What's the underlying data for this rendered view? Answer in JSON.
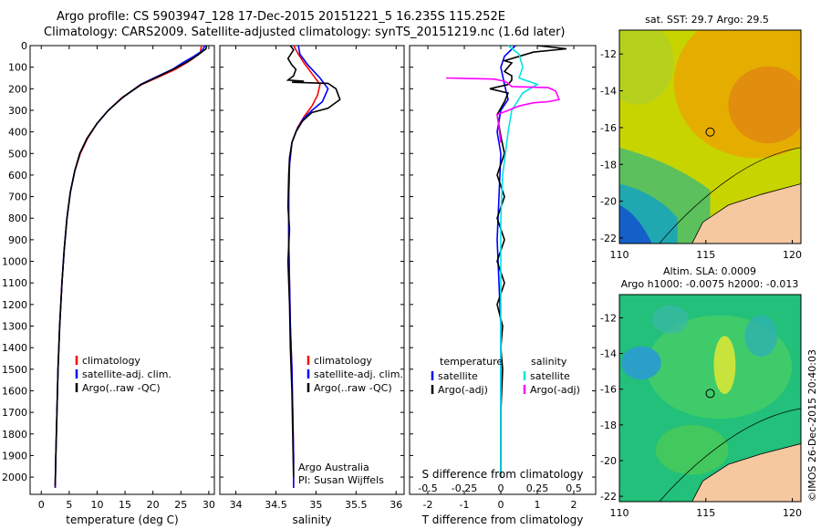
{
  "header": {
    "line1": "Argo profile: CS 5903947_128 17-Dec-2015 20151221_5 16.235S 115.252E",
    "line2": "Climatology: CARS2009. Satellite-adjusted climatology: synTS_20151219.nc (1.6d later)"
  },
  "colors": {
    "climatology": "#ff0000",
    "satellite": "#0000ff",
    "argo": "#000000",
    "sal_satellite": "#00e5e5",
    "sal_argo": "#ff00ff"
  },
  "chart_data": [
    {
      "type": "line",
      "id": "temperature",
      "xlabel": "temperature (deg C)",
      "ylabel": "",
      "xlim": [
        -2,
        31
      ],
      "ylim": [
        2080,
        0
      ],
      "xticks": [
        0,
        5,
        10,
        15,
        20,
        25,
        30
      ],
      "yticks": [
        0,
        100,
        200,
        300,
        400,
        500,
        600,
        700,
        800,
        900,
        1000,
        1100,
        1200,
        1300,
        1400,
        1500,
        1600,
        1700,
        1800,
        1900,
        2000
      ],
      "legend": [
        "climatology",
        "satellite-adj. clim.",
        "Argo(..raw -QC)"
      ],
      "series": [
        {
          "name": "climatology",
          "color": "climatology",
          "points": [
            [
              28.7,
              0
            ],
            [
              28.5,
              30
            ],
            [
              27.2,
              60
            ],
            [
              26,
              80
            ],
            [
              24,
              110
            ],
            [
              21.5,
              140
            ],
            [
              18,
              180
            ],
            [
              14.5,
              240
            ],
            [
              12,
              300
            ],
            [
              10,
              360
            ],
            [
              8.3,
              430
            ],
            [
              7,
              500
            ],
            [
              6,
              580
            ],
            [
              5.2,
              680
            ],
            [
              4.6,
              800
            ],
            [
              4.1,
              950
            ],
            [
              3.7,
              1100
            ],
            [
              3.3,
              1300
            ],
            [
              3,
              1500
            ],
            [
              2.8,
              1700
            ],
            [
              2.6,
              1900
            ],
            [
              2.5,
              2050
            ]
          ]
        },
        {
          "name": "satellite",
          "color": "satellite",
          "points": [
            [
              29.3,
              0
            ],
            [
              28.8,
              25
            ],
            [
              27,
              55
            ],
            [
              25.3,
              80
            ],
            [
              23.5,
              110
            ],
            [
              21,
              140
            ],
            [
              17.8,
              180
            ],
            [
              14.6,
              240
            ],
            [
              12,
              300
            ],
            [
              10,
              360
            ],
            [
              8.2,
              430
            ],
            [
              6.9,
              500
            ],
            [
              6,
              580
            ],
            [
              5.2,
              680
            ],
            [
              4.6,
              800
            ],
            [
              4.1,
              950
            ],
            [
              3.7,
              1100
            ],
            [
              3.3,
              1300
            ],
            [
              3,
              1500
            ],
            [
              2.8,
              1700
            ],
            [
              2.6,
              1900
            ],
            [
              2.5,
              2050
            ]
          ]
        },
        {
          "name": "argo",
          "color": "argo",
          "points": [
            [
              29.6,
              0
            ],
            [
              29.5,
              15
            ],
            [
              28,
              45
            ],
            [
              26.2,
              75
            ],
            [
              24,
              105
            ],
            [
              21.2,
              140
            ],
            [
              17.9,
              180
            ],
            [
              14.6,
              240
            ],
            [
              12,
              300
            ],
            [
              10,
              360
            ],
            [
              8.2,
              430
            ],
            [
              6.9,
              500
            ],
            [
              6,
              580
            ],
            [
              5.2,
              680
            ],
            [
              4.6,
              800
            ],
            [
              4.1,
              950
            ],
            [
              3.7,
              1100
            ],
            [
              3.3,
              1300
            ],
            [
              3,
              1500
            ],
            [
              2.8,
              1700
            ],
            [
              2.6,
              1900
            ],
            [
              2.5,
              2040
            ]
          ]
        }
      ]
    },
    {
      "type": "line",
      "id": "salinity",
      "xlabel": "salinity",
      "ylabel": "",
      "xlim": [
        33.8,
        36.1
      ],
      "ylim": [
        2080,
        0
      ],
      "xticks": [
        34,
        34.5,
        35,
        35.5,
        36
      ],
      "legend": [
        "climatology",
        "satellite-adj. clim.",
        "Argo(..raw -QC)"
      ],
      "annotations": [
        "Argo Australia",
        "PI: Susan Wijffels"
      ],
      "series": [
        {
          "name": "climatology",
          "color": "climatology",
          "points": [
            [
              34.72,
              0
            ],
            [
              34.78,
              40
            ],
            [
              34.85,
              80
            ],
            [
              34.95,
              130
            ],
            [
              35.05,
              180
            ],
            [
              35.02,
              230
            ],
            [
              34.95,
              280
            ],
            [
              34.85,
              330
            ],
            [
              34.77,
              380
            ],
            [
              34.7,
              450
            ],
            [
              34.67,
              550
            ],
            [
              34.66,
              700
            ],
            [
              34.66,
              900
            ],
            [
              34.67,
              1100
            ],
            [
              34.68,
              1300
            ],
            [
              34.7,
              1500
            ],
            [
              34.71,
              1700
            ],
            [
              34.72,
              1900
            ],
            [
              34.72,
              2050
            ]
          ]
        },
        {
          "name": "satellite",
          "color": "satellite",
          "points": [
            [
              34.78,
              0
            ],
            [
              34.8,
              40
            ],
            [
              34.9,
              90
            ],
            [
              35.05,
              150
            ],
            [
              35.15,
              200
            ],
            [
              35.08,
              260
            ],
            [
              34.95,
              300
            ],
            [
              34.84,
              340
            ],
            [
              34.76,
              390
            ],
            [
              34.7,
              450
            ],
            [
              34.67,
              550
            ],
            [
              34.66,
              700
            ],
            [
              34.66,
              900
            ],
            [
              34.67,
              1100
            ],
            [
              34.68,
              1300
            ],
            [
              34.7,
              1500
            ],
            [
              34.71,
              1700
            ],
            [
              34.72,
              1900
            ],
            [
              34.72,
              2050
            ]
          ]
        },
        {
          "name": "argo",
          "color": "argo",
          "points": [
            [
              34.68,
              0
            ],
            [
              34.72,
              20
            ],
            [
              34.65,
              60
            ],
            [
              34.7,
              90
            ],
            [
              34.75,
              110
            ],
            [
              34.72,
              140
            ],
            [
              34.65,
              160
            ],
            [
              34.85,
              165
            ],
            [
              34.7,
              170
            ],
            [
              35.15,
              175
            ],
            [
              35.25,
              200
            ],
            [
              35.3,
              250
            ],
            [
              35.15,
              290
            ],
            [
              34.95,
              310
            ],
            [
              34.83,
              350
            ],
            [
              34.75,
              400
            ],
            [
              34.7,
              450
            ],
            [
              34.67,
              520
            ],
            [
              34.66,
              600
            ],
            [
              34.65,
              750
            ],
            [
              34.67,
              850
            ],
            [
              34.65,
              1000
            ],
            [
              34.67,
              1200
            ],
            [
              34.68,
              1400
            ],
            [
              34.7,
              1600
            ],
            [
              34.71,
              1800
            ],
            [
              34.72,
              2000
            ]
          ]
        }
      ]
    },
    {
      "type": "line",
      "id": "differences",
      "xlabel": "T difference from climatology",
      "xlabel_top": "S difference from climatology",
      "xlim": [
        -2.5,
        2.6
      ],
      "ylim": [
        2080,
        0
      ],
      "xticks": [
        -2,
        -1,
        0,
        1,
        2
      ],
      "xticks_top": [
        "-0.5",
        "-0.25",
        "0",
        "0.25",
        "0.5"
      ],
      "xticks_top_pos": [
        -2,
        -1,
        0,
        1,
        2
      ],
      "legend_left_title": "temperature",
      "legend_left": [
        "satellite",
        "Argo(-adj)"
      ],
      "legend_right_title": "salinity",
      "legend_right": [
        "satellite",
        "Argo(-adj)"
      ],
      "series": [
        {
          "name": "T satellite",
          "color": "satellite",
          "points": [
            [
              0.4,
              0
            ],
            [
              0.1,
              50
            ],
            [
              0,
              100
            ],
            [
              0.1,
              180
            ],
            [
              0.2,
              250
            ],
            [
              0,
              300
            ],
            [
              -0.1,
              400
            ],
            [
              0,
              500
            ],
            [
              -0.05,
              700
            ],
            [
              -0.1,
              900
            ],
            [
              -0.05,
              1100
            ],
            [
              0,
              1300
            ],
            [
              0,
              1500
            ],
            [
              0,
              1700
            ],
            [
              0,
              2000
            ]
          ]
        },
        {
          "name": "T argo",
          "color": "argo",
          "points": [
            [
              1,
              0
            ],
            [
              1.8,
              15
            ],
            [
              0.9,
              30
            ],
            [
              0.5,
              50
            ],
            [
              0.1,
              70
            ],
            [
              0.3,
              80
            ],
            [
              0.1,
              120
            ],
            [
              0.3,
              140
            ],
            [
              0.3,
              160
            ],
            [
              0.2,
              180
            ],
            [
              -0.3,
              200
            ],
            [
              0.2,
              220
            ],
            [
              0.1,
              260
            ],
            [
              -0.1,
              320
            ],
            [
              0,
              420
            ],
            [
              0.1,
              500
            ],
            [
              -0.1,
              600
            ],
            [
              0.1,
              700
            ],
            [
              -0.1,
              800
            ],
            [
              0.1,
              900
            ],
            [
              -0.1,
              1000
            ],
            [
              0.1,
              1100
            ],
            [
              -0.1,
              1200
            ],
            [
              0.05,
              1300
            ],
            [
              0,
              1400
            ],
            [
              0.05,
              1500
            ],
            [
              0,
              1700
            ],
            [
              0,
              2000
            ]
          ]
        },
        {
          "name": "S satellite",
          "color": "sal_satellite",
          "points": [
            [
              0.2,
              0
            ],
            [
              0.5,
              40
            ],
            [
              0.6,
              100
            ],
            [
              0.5,
              150
            ],
            [
              1,
              180
            ],
            [
              0.6,
              220
            ],
            [
              0.3,
              300
            ],
            [
              0.2,
              400
            ],
            [
              0.05,
              600
            ],
            [
              0,
              800
            ],
            [
              0,
              1000
            ],
            [
              0,
              1500
            ],
            [
              0,
              2000
            ]
          ]
        },
        {
          "name": "S argo",
          "color": "sal_argo",
          "points": [
            [
              -1.5,
              150
            ],
            [
              -0.2,
              155
            ],
            [
              0.1,
              165
            ],
            [
              0.2,
              175
            ],
            [
              0.3,
              190
            ],
            [
              1.3,
              195
            ],
            [
              1.5,
              210
            ],
            [
              1.6,
              250
            ],
            [
              1.3,
              260
            ],
            [
              0.9,
              265
            ],
            [
              0.5,
              280
            ],
            [
              0.2,
              300
            ],
            [
              -0.1,
              320
            ],
            [
              -0.05,
              380
            ],
            [
              0,
              450
            ]
          ]
        }
      ]
    },
    {
      "type": "heatmap",
      "id": "sst_map",
      "title": "sat. SST: 29.7  Argo: 29.5",
      "xlim": [
        110,
        120.5
      ],
      "ylim": [
        -22.3,
        -10.7
      ],
      "xticks": [
        110,
        115,
        120
      ],
      "yticks": [
        -12,
        -14,
        -16,
        -18,
        -20,
        -22
      ],
      "marker": [
        115.25,
        -16.24
      ]
    },
    {
      "type": "heatmap",
      "id": "sla_map",
      "title_line1": "Altim. SLA: 0.0009",
      "title_line2": "Argo h1000: -0.0075  h2000: -0.013",
      "xlim": [
        110,
        120.5
      ],
      "ylim": [
        -22.3,
        -10.7
      ],
      "xticks": [
        110,
        115,
        120
      ],
      "yticks": [
        -12,
        -14,
        -16,
        -18,
        -20,
        -22
      ],
      "marker": [
        115.25,
        -16.24
      ]
    }
  ],
  "credit": "©IMOS 26-Dec-2015 20:40:03"
}
